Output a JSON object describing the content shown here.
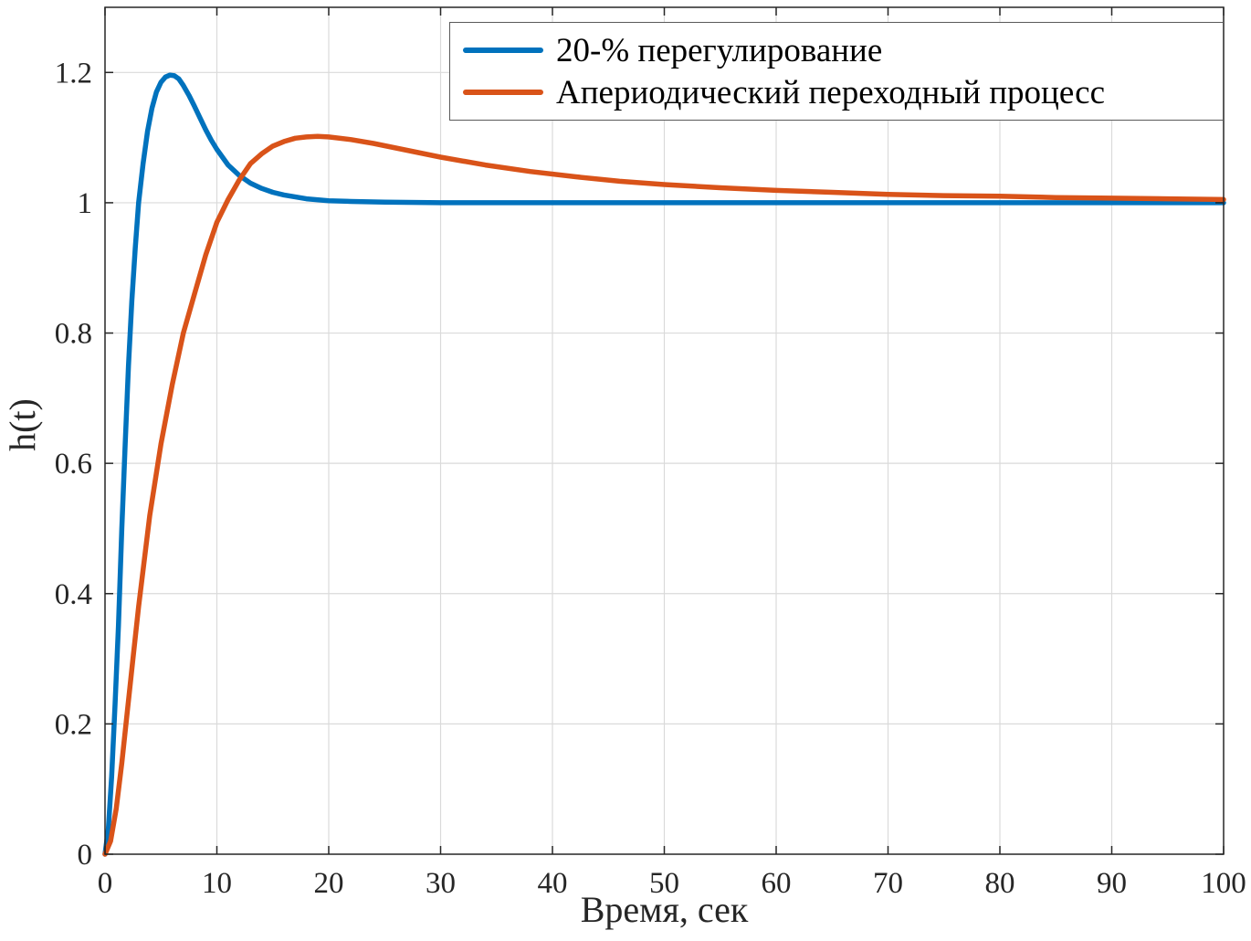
{
  "figure": {
    "background": "#ffffff",
    "axis_color": "#262626",
    "grid_color": "#dadada"
  },
  "chart_data": {
    "type": "line",
    "title": "",
    "xlabel": "Время, сек",
    "ylabel": "h(t)",
    "xlim": [
      0,
      100
    ],
    "ylim": [
      0,
      1.3
    ],
    "grid": true,
    "legend_position": "top-right-inside",
    "xticks": [
      0,
      10,
      20,
      30,
      40,
      50,
      60,
      70,
      80,
      90,
      100
    ],
    "xtick_labels": [
      "0",
      "10",
      "20",
      "30",
      "40",
      "50",
      "60",
      "70",
      "80",
      "90",
      "100"
    ],
    "yticks": [
      0,
      0.2,
      0.4,
      0.6,
      0.8,
      1,
      1.2
    ],
    "ytick_labels": [
      "0",
      "0.2",
      "0.4",
      "0.6",
      "0.8",
      "1",
      "1.2"
    ],
    "series": [
      {
        "name": "20-% перегулирование",
        "color": "#0072BD",
        "x": [
          0,
          0.3,
          0.6,
          0.9,
          1.2,
          1.5,
          1.8,
          2.1,
          2.4,
          2.7,
          3,
          3.4,
          3.8,
          4.2,
          4.6,
          5,
          5.4,
          5.8,
          6.2,
          6.6,
          7,
          7.5,
          8,
          8.5,
          9,
          9.5,
          10,
          11,
          12,
          13,
          14,
          15,
          16,
          18,
          20,
          22,
          25,
          30,
          35,
          40,
          50,
          60,
          70,
          80,
          90,
          100
        ],
        "y": [
          0,
          0.04,
          0.12,
          0.23,
          0.35,
          0.5,
          0.63,
          0.75,
          0.85,
          0.93,
          1,
          1.06,
          1.11,
          1.145,
          1.17,
          1.185,
          1.193,
          1.196,
          1.195,
          1.19,
          1.18,
          1.165,
          1.148,
          1.13,
          1.112,
          1.096,
          1.082,
          1.058,
          1.042,
          1.03,
          1.022,
          1.016,
          1.012,
          1.006,
          1.003,
          1.002,
          1.001,
          1,
          1,
          1,
          1,
          1,
          1,
          1,
          1,
          1
        ]
      },
      {
        "name": "Апериодический переходный процесс",
        "color": "#D95319",
        "x": [
          0,
          0.5,
          1,
          1.5,
          2,
          2.5,
          3,
          4,
          5,
          6,
          7,
          8,
          9,
          10,
          11,
          12,
          13,
          14,
          15,
          16,
          17,
          18,
          19,
          20,
          22,
          24,
          26,
          28,
          30,
          34,
          38,
          42,
          46,
          50,
          55,
          60,
          65,
          70,
          75,
          80,
          85,
          90,
          95,
          100
        ],
        "y": [
          0,
          0.02,
          0.07,
          0.14,
          0.22,
          0.3,
          0.38,
          0.52,
          0.63,
          0.72,
          0.8,
          0.86,
          0.92,
          0.97,
          1.005,
          1.035,
          1.06,
          1.075,
          1.087,
          1.094,
          1.099,
          1.101,
          1.102,
          1.101,
          1.097,
          1.091,
          1.084,
          1.077,
          1.07,
          1.058,
          1.048,
          1.04,
          1.033,
          1.028,
          1.023,
          1.019,
          1.016,
          1.013,
          1.011,
          1.01,
          1.008,
          1.007,
          1.006,
          1.005
        ]
      }
    ]
  }
}
